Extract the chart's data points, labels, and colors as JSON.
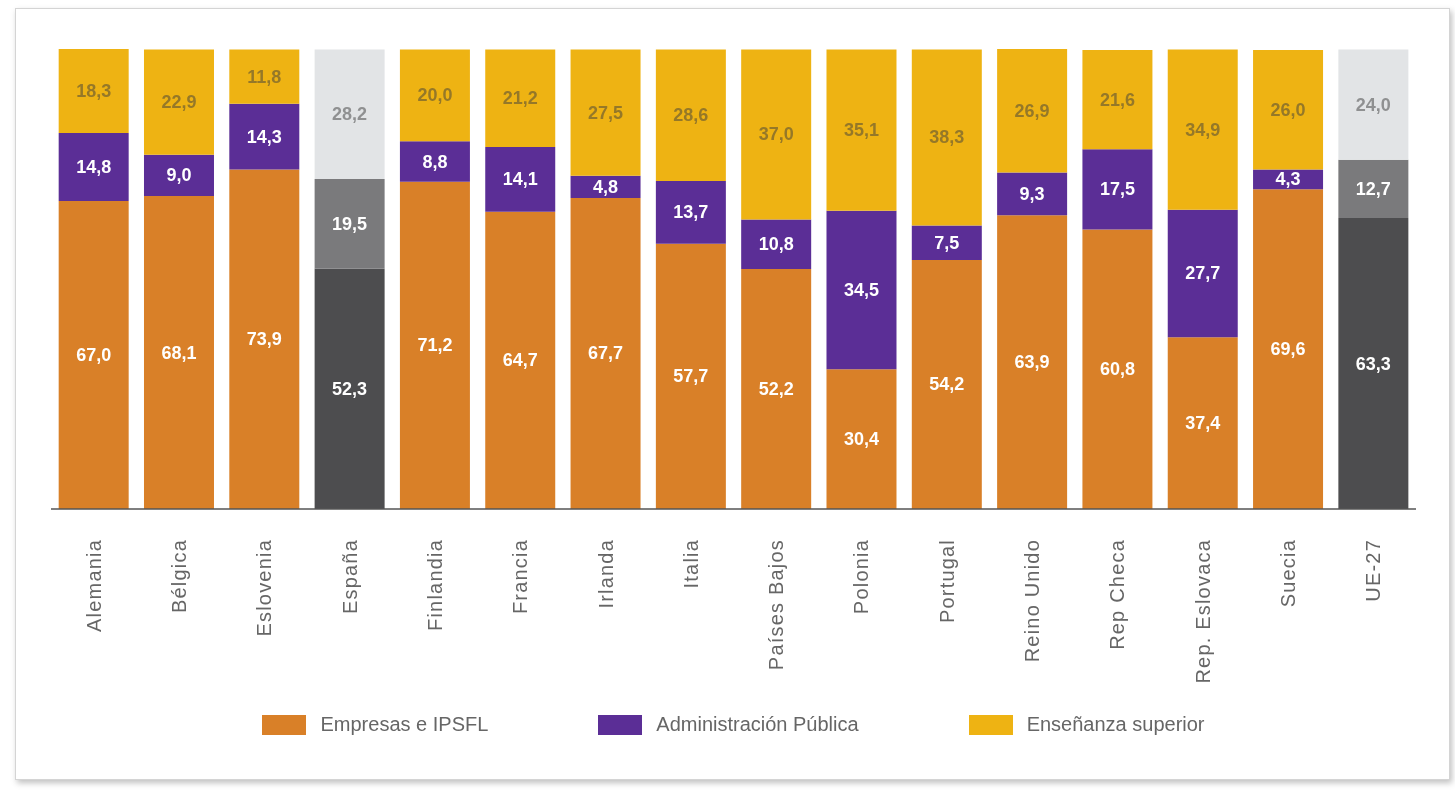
{
  "chart_data": {
    "type": "bar",
    "stacked": true,
    "legend": "bottom",
    "categories": [
      "Alemania",
      "Bélgica",
      "Eslovenia",
      "España",
      "Finlandia",
      "Francia",
      "Irlanda",
      "Italia",
      "Países Bajos",
      "Polonia",
      "Portugal",
      "Reino Unido",
      "Rep Checa",
      "Rep. Eslovaca",
      "Suecia",
      "UE-27"
    ],
    "series": [
      {
        "name": "Empresas e IPSFL",
        "color": "#d98028",
        "colors": [
          "#d98028",
          "#d98028",
          "#d98028",
          "#4d4d4f",
          "#d98028",
          "#d98028",
          "#d98028",
          "#d98028",
          "#d98028",
          "#d98028",
          "#d98028",
          "#d98028",
          "#d98028",
          "#d98028",
          "#d98028",
          "#4d4d4f"
        ],
        "values": [
          67.0,
          68.1,
          73.9,
          52.3,
          71.2,
          64.7,
          67.7,
          57.7,
          52.2,
          30.4,
          54.2,
          63.9,
          60.8,
          37.4,
          69.6,
          63.3
        ],
        "value_labels": [
          "67,0",
          "68,1",
          "73,9",
          "52,3",
          "71,2",
          "64,7",
          "67,7",
          "57,7",
          "52,2",
          "30,4",
          "54,2",
          "63,9",
          "60,8",
          "37,4",
          "69,6",
          "63,3"
        ]
      },
      {
        "name": "Administración Pública",
        "color": "#5b2e96",
        "colors": [
          "#5b2e96",
          "#5b2e96",
          "#5b2e96",
          "#7a7a7c",
          "#5b2e96",
          "#5b2e96",
          "#5b2e96",
          "#5b2e96",
          "#5b2e96",
          "#5b2e96",
          "#5b2e96",
          "#5b2e96",
          "#5b2e96",
          "#5b2e96",
          "#5b2e96",
          "#7a7a7c"
        ],
        "values": [
          14.8,
          9.0,
          14.3,
          19.5,
          8.8,
          14.1,
          4.8,
          13.7,
          10.8,
          34.5,
          7.5,
          9.3,
          17.5,
          27.7,
          4.3,
          12.7
        ],
        "value_labels": [
          "14,8",
          "9,0",
          "14,3",
          "19,5",
          "8,8",
          "14,1",
          "4,8",
          "13,7",
          "10,8",
          "34,5",
          "7,5",
          "9,3",
          "17,5",
          "27,7",
          "4,3",
          "12,7"
        ]
      },
      {
        "name": "Enseñanza superior",
        "color": "#eeb313",
        "colors": [
          "#eeb313",
          "#eeb313",
          "#eeb313",
          "#e2e4e6",
          "#eeb313",
          "#eeb313",
          "#eeb313",
          "#eeb313",
          "#eeb313",
          "#eeb313",
          "#eeb313",
          "#eeb313",
          "#eeb313",
          "#eeb313",
          "#eeb313",
          "#e2e4e6"
        ],
        "values": [
          18.3,
          22.9,
          11.8,
          28.2,
          20.0,
          21.2,
          27.5,
          28.6,
          37.0,
          35.1,
          38.3,
          26.9,
          21.6,
          34.9,
          26.0,
          24.0
        ],
        "value_labels": [
          "18,3",
          "22,9",
          "11,8",
          "28,2",
          "20,0",
          "21,2",
          "27,5",
          "28,6",
          "37,0",
          "35,1",
          "38,3",
          "26,9",
          "21,6",
          "34,9",
          "26,0",
          "24,0"
        ]
      }
    ]
  }
}
